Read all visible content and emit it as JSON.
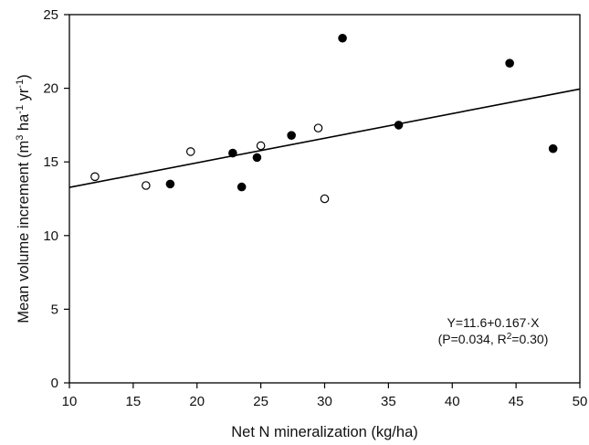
{
  "chart_data": {
    "type": "scatter",
    "xlabel": "Net N mineralization (kg/ha)",
    "ylabel": {
      "prefix": "Mean volume increment (m",
      "sup1": "3",
      "mid1": " ha",
      "sup2": "-1",
      "mid2": " yr",
      "sup3": "-1",
      "suffix": ")"
    },
    "xlim": [
      10,
      50
    ],
    "ylim": [
      0,
      25
    ],
    "xticks": [
      10,
      15,
      20,
      25,
      30,
      35,
      40,
      45,
      50
    ],
    "yticks": [
      0,
      5,
      10,
      15,
      20,
      25
    ],
    "grid": false,
    "series": [
      {
        "marker": "filled-circle",
        "color": "#000000",
        "points": [
          {
            "x": 17.9,
            "y": 13.5
          },
          {
            "x": 22.8,
            "y": 15.6
          },
          {
            "x": 23.5,
            "y": 13.3
          },
          {
            "x": 24.7,
            "y": 15.3
          },
          {
            "x": 27.4,
            "y": 16.8
          },
          {
            "x": 31.4,
            "y": 23.4
          },
          {
            "x": 35.8,
            "y": 17.5
          },
          {
            "x": 44.5,
            "y": 21.7
          },
          {
            "x": 47.9,
            "y": 15.9
          }
        ]
      },
      {
        "marker": "open-circle",
        "color": "#000000",
        "points": [
          {
            "x": 12.0,
            "y": 14.0
          },
          {
            "x": 16.0,
            "y": 13.4
          },
          {
            "x": 19.5,
            "y": 15.7
          },
          {
            "x": 25.0,
            "y": 16.1
          },
          {
            "x": 29.5,
            "y": 17.3
          },
          {
            "x": 30.0,
            "y": 12.5
          }
        ]
      }
    ],
    "regression": {
      "intercept": 11.6,
      "slope": 0.167,
      "x_range": [
        10,
        50
      ]
    },
    "annotation": {
      "line1": "Y=11.6+0.167·X",
      "line2_prefix": "(P=0.034, R",
      "line2_sup": "2",
      "line2_suffix": "=0.30)"
    }
  }
}
